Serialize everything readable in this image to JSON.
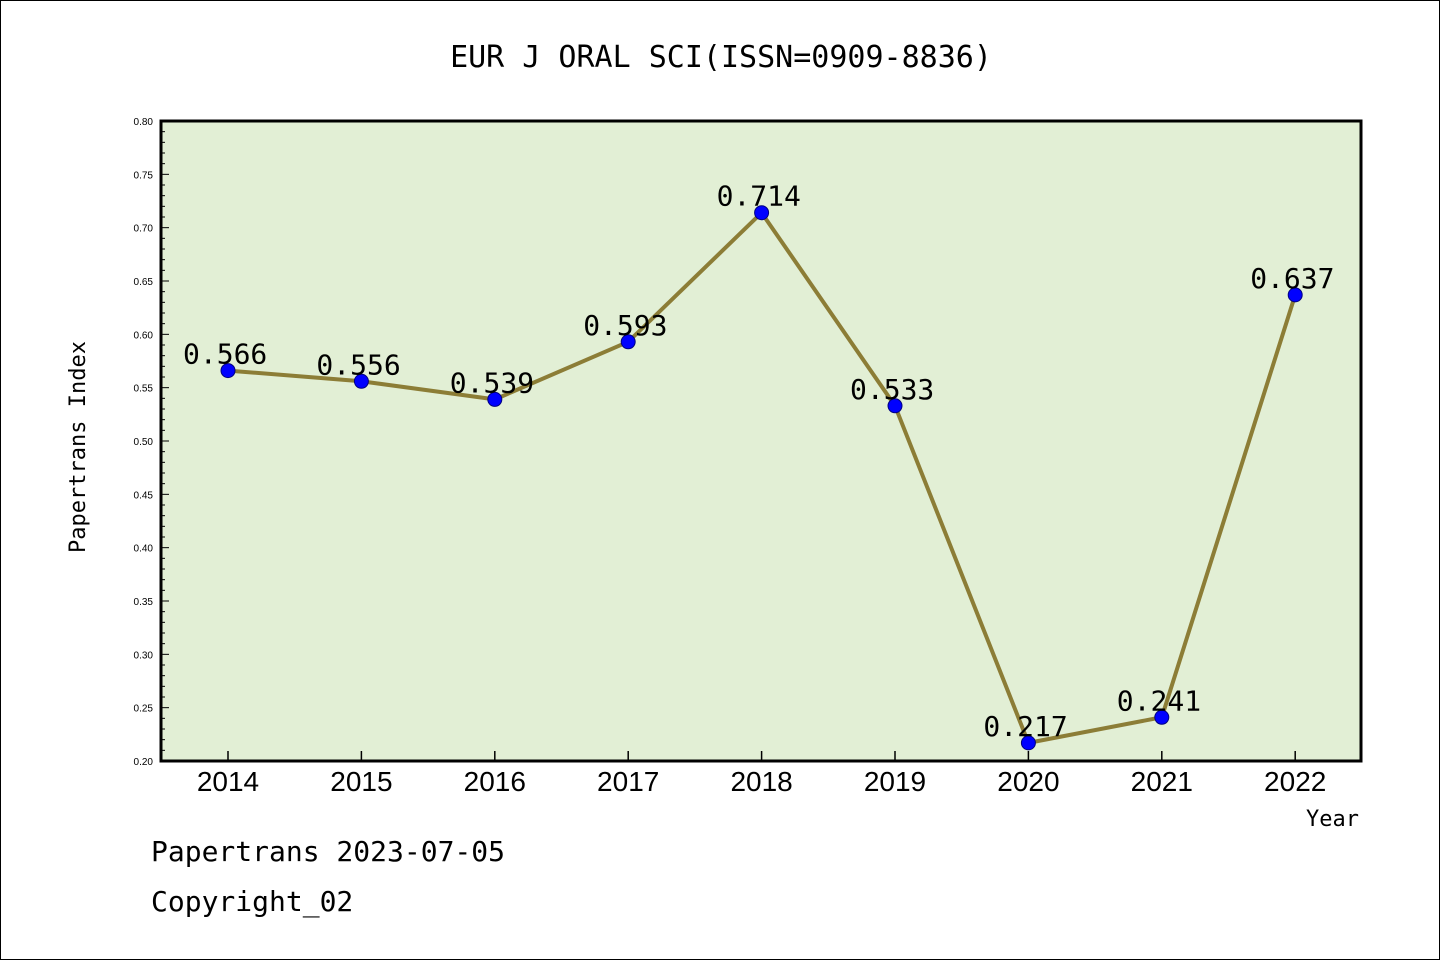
{
  "chart_data": {
    "type": "line",
    "title": "EUR J ORAL SCI(ISSN=0909-8836)",
    "xlabel": "Year",
    "ylabel": "Papertrans Index",
    "categories": [
      "2014",
      "2015",
      "2016",
      "2017",
      "2018",
      "2019",
      "2020",
      "2021",
      "2022"
    ],
    "values": [
      0.566,
      0.556,
      0.539,
      0.593,
      0.714,
      0.533,
      0.217,
      0.241,
      0.637
    ],
    "data_labels": [
      "0.566",
      "0.556",
      "0.539",
      "0.593",
      "0.714",
      "0.533",
      "0.217",
      "0.241",
      "0.637"
    ],
    "ylim": [
      0.2,
      0.8
    ],
    "yticks": [
      "0.20",
      "0.25",
      "0.30",
      "0.35",
      "0.40",
      "0.45",
      "0.50",
      "0.55",
      "0.60",
      "0.65",
      "0.70",
      "0.75",
      "0.80"
    ],
    "grid": false,
    "legend": "none",
    "colors": {
      "plot_background": "#e2efd5",
      "line": "#8c7d36",
      "marker": "#0000ff",
      "marker_edge": "#000080"
    }
  },
  "footer": {
    "line1": "Papertrans 2023-07-05",
    "line2": "Copyright_02"
  }
}
